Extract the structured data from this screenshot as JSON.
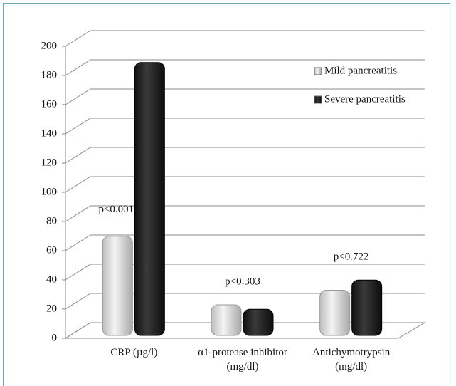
{
  "chart_data": {
    "type": "bar",
    "categories": [
      "CRP (µg/l)",
      "α1-protease inhibitor\n(mg/dl)",
      "Antichymotrypsin\n(mg/dl)"
    ],
    "series": [
      {
        "name": "Mild pancreatitis",
        "color": "#d9d9d9",
        "values": [
          66,
          19,
          29
        ]
      },
      {
        "name": "Severe pancreatitis",
        "color": "#2a2a2a",
        "values": [
          185,
          16,
          36
        ]
      }
    ],
    "annotations": [
      "p<0.001",
      "p<0.303",
      "p<0.722"
    ],
    "ylim": [
      0,
      200
    ],
    "yticks": [
      0,
      20,
      40,
      60,
      80,
      100,
      120,
      140,
      160,
      180,
      200
    ],
    "grid": true
  }
}
